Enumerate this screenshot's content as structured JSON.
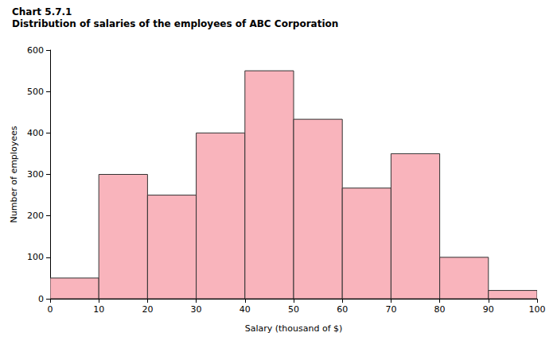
{
  "chart_data": {
    "type": "histogram",
    "title": "Chart 5.7.1",
    "subtitle": "Distribution of salaries of the employees of ABC Corporation",
    "x_label": "Salary (thousand of $)",
    "y_label": "Number of employees",
    "bins": [
      0,
      10,
      20,
      30,
      40,
      50,
      60,
      70,
      80,
      90,
      100
    ],
    "values": [
      50,
      300,
      250,
      400,
      550,
      433,
      267,
      350,
      100,
      20
    ],
    "color": "#f9b4bc",
    "xlim": [
      0,
      100
    ],
    "xticks": [
      0,
      10,
      20,
      30,
      40,
      50,
      60,
      70,
      80,
      90,
      100
    ],
    "ylim": [
      0,
      600
    ],
    "yticks": [
      0,
      100,
      200,
      300,
      400,
      500,
      600
    ],
    "grid": false
  }
}
